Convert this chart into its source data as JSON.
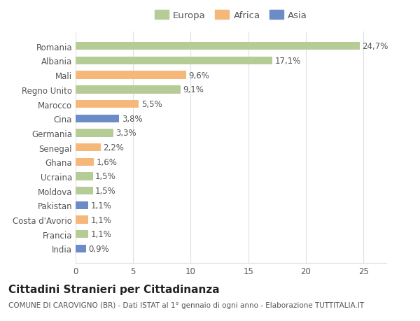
{
  "categories": [
    "Romania",
    "Albania",
    "Mali",
    "Regno Unito",
    "Marocco",
    "Cina",
    "Germania",
    "Senegal",
    "Ghana",
    "Ucraina",
    "Moldova",
    "Pakistan",
    "Costa d'Avorio",
    "Francia",
    "India"
  ],
  "values": [
    24.7,
    17.1,
    9.6,
    9.1,
    5.5,
    3.8,
    3.3,
    2.2,
    1.6,
    1.5,
    1.5,
    1.1,
    1.1,
    1.1,
    0.9
  ],
  "labels": [
    "24,7%",
    "17,1%",
    "9,6%",
    "9,1%",
    "5,5%",
    "3,8%",
    "3,3%",
    "2,2%",
    "1,6%",
    "1,5%",
    "1,5%",
    "1,1%",
    "1,1%",
    "1,1%",
    "0,9%"
  ],
  "colors": [
    "#b5cc96",
    "#b5cc96",
    "#f5b87a",
    "#b5cc96",
    "#f5b87a",
    "#6b8cc7",
    "#b5cc96",
    "#f5b87a",
    "#f5b87a",
    "#b5cc96",
    "#b5cc96",
    "#6b8cc7",
    "#f5b87a",
    "#b5cc96",
    "#6b8cc7"
  ],
  "legend_labels": [
    "Europa",
    "Africa",
    "Asia"
  ],
  "legend_colors": [
    "#b5cc96",
    "#f5b87a",
    "#6b8cc7"
  ],
  "title": "Cittadini Stranieri per Cittadinanza",
  "subtitle": "COMUNE DI CAROVIGNO (BR) - Dati ISTAT al 1° gennaio di ogni anno - Elaborazione TUTTITALIA.IT",
  "xlim": [
    0,
    27
  ],
  "xticks": [
    0,
    5,
    10,
    15,
    20,
    25
  ],
  "bg_color": "#ffffff",
  "grid_color": "#e0e0e0",
  "bar_height": 0.55,
  "label_fontsize": 8.5,
  "tick_fontsize": 8.5,
  "title_fontsize": 11,
  "subtitle_fontsize": 7.5
}
